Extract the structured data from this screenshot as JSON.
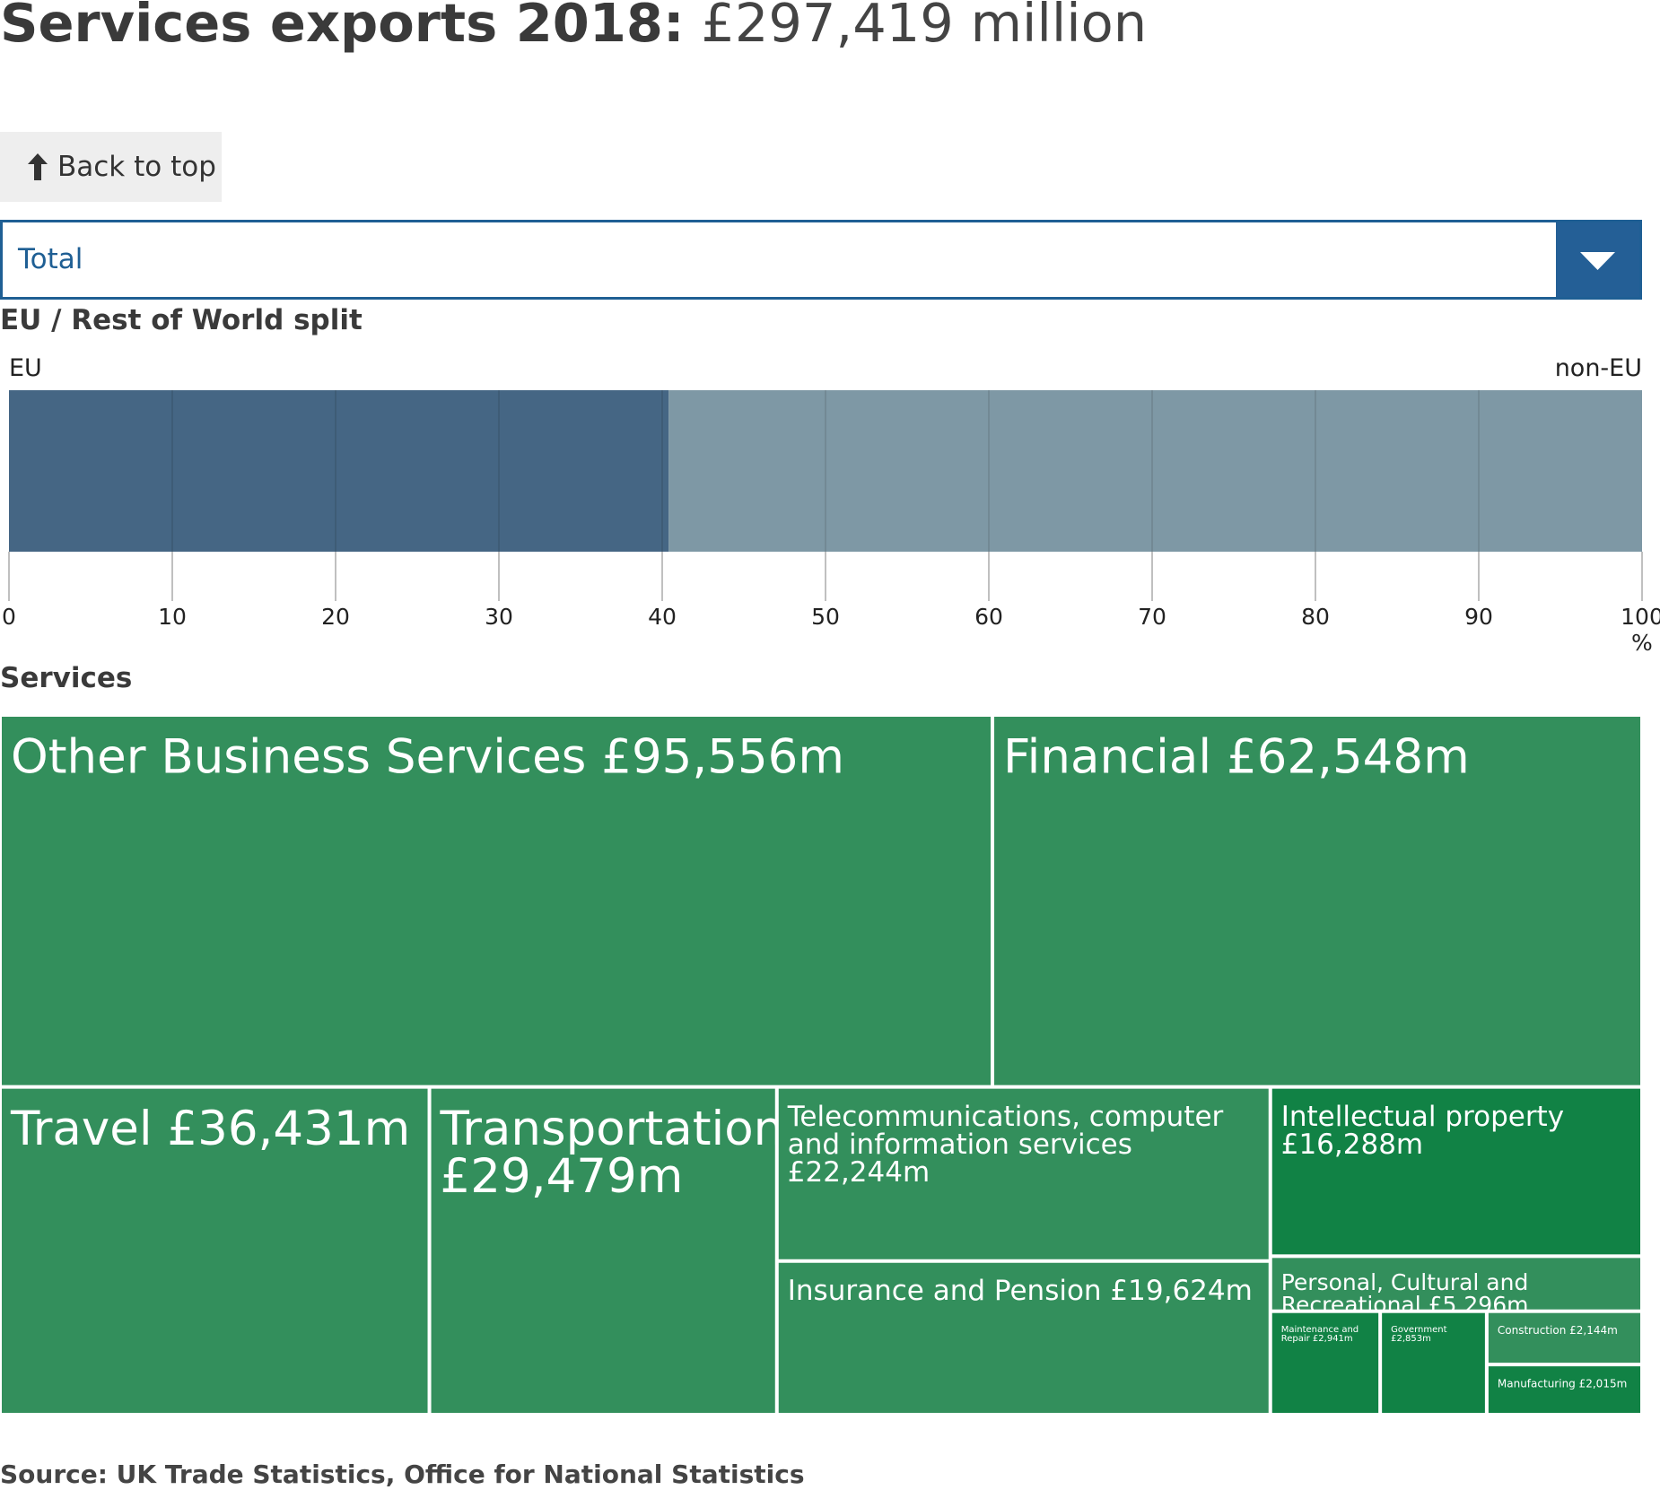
{
  "title": {
    "bold": "Services exports 2018:",
    "light": "£297,419 million"
  },
  "back_to_top": {
    "label": "Back to top",
    "icon": "arrow-up-icon"
  },
  "selector": {
    "value": "Total",
    "icon": "caret-down-icon"
  },
  "split": {
    "section_title": "EU / Rest of World split",
    "left_label": "EU",
    "right_label": "non-EU"
  },
  "treemap": {
    "section_title": "Services"
  },
  "source": "Source: UK Trade Statistics, Office for National Statistics",
  "colors": {
    "eu": "#456684",
    "non_eu": "#7e98a5",
    "treemap": "#338f5c",
    "treemap_dark": "#118245",
    "accent": "#1f5f94",
    "gridline": "#999999"
  },
  "chart_data": [
    {
      "type": "bar",
      "orientation": "horizontal-stacked",
      "categories": [
        "EU",
        "non-EU"
      ],
      "values": [
        40.4,
        59.6
      ],
      "xlim": [
        0,
        100
      ],
      "ticks": [
        0,
        10,
        20,
        30,
        40,
        50,
        60,
        70,
        80,
        90,
        100
      ],
      "unit": "%"
    },
    {
      "type": "treemap",
      "total": 297419,
      "items": [
        {
          "label": "Other Business Services £95,556m",
          "value": 95556
        },
        {
          "label": "Financial £62,548m",
          "value": 62548
        },
        {
          "label": "Travel £36,431m",
          "value": 36431
        },
        {
          "label": "Transportation £29,479m",
          "value": 29479
        },
        {
          "label": "Telecommunications, computer and information services £22,244m",
          "value": 22244
        },
        {
          "label": "Intellectual property £16,288m",
          "value": 16288
        },
        {
          "label": "Insurance and Pension £19,624m",
          "value": 19624
        },
        {
          "label": "Personal, Cultural and Recreational £5,296m",
          "value": 5296
        },
        {
          "label": "Maintenance and Repair £2,941m",
          "value": 2941
        },
        {
          "label": "Government £2,853m",
          "value": 2853
        },
        {
          "label": "Construction £2,144m",
          "value": 2144
        },
        {
          "label": "Manufacturing £2,015m",
          "value": 2015
        }
      ]
    }
  ]
}
